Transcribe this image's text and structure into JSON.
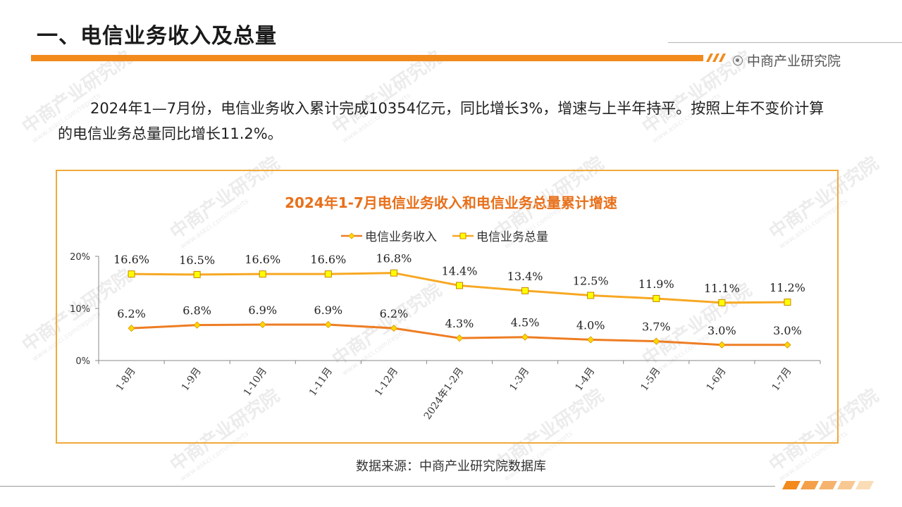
{
  "page": {
    "title": "一、电信业务收入及总量",
    "brand": "中商产业研究院",
    "paragraph": "2024年1—7月份，电信业务收入累计完成10354亿元，同比增长3%，增速与上半年持平。按照上年不变价计算的电信业务总量同比增长11.2%。",
    "source": "数据来源：中商产业研究院数据库",
    "watermark_text": "中商产业研究院",
    "watermark_url": "www.askci.com/reports"
  },
  "colors": {
    "accent_orange": "#f28a1c",
    "revenue_line": "#ee7d23",
    "revenue_marker": "#ffd700",
    "total_line": "#f7a823",
    "total_marker": "#ffff00",
    "chart_title": "#e8701a",
    "chart_border": "#f0a93a"
  },
  "chart_data": {
    "type": "line",
    "title": "2024年1-7月电信业务收入和电信业务总量累计增速",
    "categories": [
      "1-8月",
      "1-9月",
      "1-10月",
      "1-11月",
      "1-12月",
      "2024年1-2月",
      "1-3月",
      "1-4月",
      "1-5月",
      "1-6月",
      "1-7月"
    ],
    "series": [
      {
        "name": "电信业务收入",
        "values": [
          6.2,
          6.8,
          6.9,
          6.9,
          6.2,
          4.3,
          4.5,
          4.0,
          3.7,
          3.0,
          3.0
        ],
        "labels": [
          "6.2%",
          "6.8%",
          "6.9%",
          "6.9%",
          "6.2%",
          "4.3%",
          "4.5%",
          "4.0%",
          "3.7%",
          "3.0%",
          "3.0%"
        ],
        "marker": "diamond"
      },
      {
        "name": "电信业务总量",
        "values": [
          16.6,
          16.5,
          16.6,
          16.6,
          16.8,
          14.4,
          13.4,
          12.5,
          11.9,
          11.1,
          11.2
        ],
        "labels": [
          "16.6%",
          "16.5%",
          "16.6%",
          "16.6%",
          "16.8%",
          "14.4%",
          "13.4%",
          "12.5%",
          "11.9%",
          "11.1%",
          "11.2%"
        ],
        "marker": "square"
      }
    ],
    "ylim": [
      0,
      20
    ],
    "yticks": [
      "0%",
      "10%",
      "20%"
    ],
    "ytick_values": [
      0,
      10,
      20
    ],
    "grid": false,
    "legend_position": "top"
  }
}
